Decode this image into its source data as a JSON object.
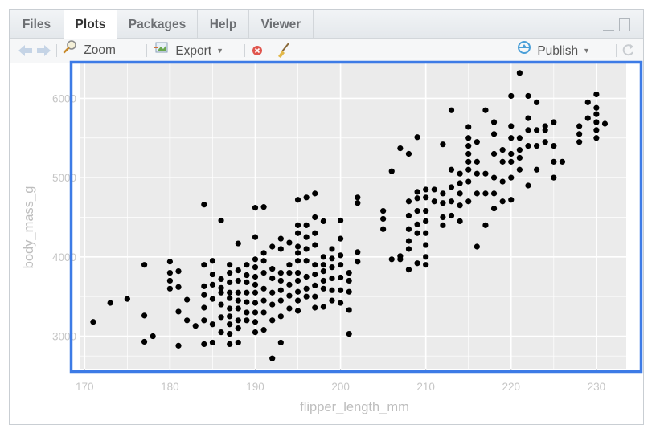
{
  "tabs": [
    {
      "label": "Files",
      "active": false
    },
    {
      "label": "Plots",
      "active": true
    },
    {
      "label": "Packages",
      "active": false
    },
    {
      "label": "Help",
      "active": false
    },
    {
      "label": "Viewer",
      "active": false
    }
  ],
  "toolbar": {
    "zoom_label": "Zoom",
    "export_label": "Export",
    "publish_label": "Publish",
    "icons": [
      "back-arrow-icon",
      "forward-arrow-icon",
      "magnifier-icon",
      "export-image-icon",
      "remove-plot-icon",
      "broom-icon",
      "publish-icon",
      "refresh-icon"
    ]
  },
  "colors": {
    "selection_outline": "#3d7be6",
    "panel_bg": "#ebebeb",
    "gridline": "#ffffff",
    "point": "#000000"
  },
  "chart_data": {
    "type": "scatter",
    "xlabel": "flipper_length_mm",
    "ylabel": "body_mass_g",
    "xticks": [
      170,
      180,
      190,
      200,
      210,
      220,
      230
    ],
    "yticks": [
      3000,
      4000,
      5000,
      6000
    ],
    "xlim": [
      169.5,
      233.5
    ],
    "ylim": [
      2590,
      6450
    ],
    "grid": true,
    "points": [
      [
        171,
        3180
      ],
      [
        173,
        3420
      ],
      [
        175,
        3470
      ],
      [
        177,
        2930
      ],
      [
        177,
        3260
      ],
      [
        177,
        3900
      ],
      [
        178,
        3000
      ],
      [
        180,
        3600
      ],
      [
        180,
        3700
      ],
      [
        180,
        3800
      ],
      [
        180,
        3940
      ],
      [
        181,
        2880
      ],
      [
        181,
        3310
      ],
      [
        181,
        3620
      ],
      [
        181,
        3820
      ],
      [
        182,
        3460
      ],
      [
        182,
        3200
      ],
      [
        183,
        3130
      ],
      [
        184,
        2900
      ],
      [
        184,
        3200
      ],
      [
        184,
        3360
      ],
      [
        184,
        3520
      ],
      [
        184,
        3630
      ],
      [
        184,
        3900
      ],
      [
        184,
        4660
      ],
      [
        185,
        2920
      ],
      [
        185,
        3150
      ],
      [
        185,
        3470
      ],
      [
        185,
        3650
      ],
      [
        185,
        3780
      ],
      [
        185,
        3950
      ],
      [
        186,
        3050
      ],
      [
        186,
        3240
      ],
      [
        186,
        3400
      ],
      [
        186,
        3550
      ],
      [
        186,
        3610
      ],
      [
        186,
        3720
      ],
      [
        186,
        4460
      ],
      [
        187,
        2900
      ],
      [
        187,
        3030
      ],
      [
        187,
        3150
      ],
      [
        187,
        3250
      ],
      [
        187,
        3350
      ],
      [
        187,
        3480
      ],
      [
        187,
        3550
      ],
      [
        187,
        3680
      ],
      [
        187,
        3800
      ],
      [
        187,
        3900
      ],
      [
        188,
        2920
      ],
      [
        188,
        3100
      ],
      [
        188,
        3200
      ],
      [
        188,
        3350
      ],
      [
        188,
        3450
      ],
      [
        188,
        3550
      ],
      [
        188,
        3700
      ],
      [
        188,
        3830
      ],
      [
        188,
        4170
      ],
      [
        189,
        3200
      ],
      [
        189,
        3300
      ],
      [
        189,
        3430
      ],
      [
        189,
        3550
      ],
      [
        189,
        3680
      ],
      [
        189,
        3770
      ],
      [
        189,
        3900
      ],
      [
        190,
        3050
      ],
      [
        190,
        3180
      ],
      [
        190,
        3300
      ],
      [
        190,
        3420
      ],
      [
        190,
        3550
      ],
      [
        190,
        3650
      ],
      [
        190,
        3750
      ],
      [
        190,
        3870
      ],
      [
        190,
        3970
      ],
      [
        190,
        4250
      ],
      [
        190,
        4620
      ],
      [
        191,
        3080
      ],
      [
        191,
        3300
      ],
      [
        191,
        3450
      ],
      [
        191,
        3600
      ],
      [
        191,
        3800
      ],
      [
        191,
        3950
      ],
      [
        191,
        4050
      ],
      [
        191,
        4630
      ],
      [
        192,
        2720
      ],
      [
        192,
        3200
      ],
      [
        192,
        3400
      ],
      [
        192,
        3550
      ],
      [
        192,
        3730
      ],
      [
        192,
        3850
      ],
      [
        192,
        4130
      ],
      [
        193,
        2920
      ],
      [
        193,
        3250
      ],
      [
        193,
        3450
      ],
      [
        193,
        3580
      ],
      [
        193,
        3700
      ],
      [
        193,
        3800
      ],
      [
        193,
        4100
      ],
      [
        193,
        4230
      ],
      [
        194,
        3350
      ],
      [
        194,
        3510
      ],
      [
        194,
        3650
      ],
      [
        194,
        3800
      ],
      [
        194,
        3900
      ],
      [
        194,
        4180
      ],
      [
        195,
        3320
      ],
      [
        195,
        3450
      ],
      [
        195,
        3560
      ],
      [
        195,
        3700
      ],
      [
        195,
        3800
      ],
      [
        195,
        3950
      ],
      [
        195,
        4050
      ],
      [
        195,
        4130
      ],
      [
        195,
        4300
      ],
      [
        195,
        4400
      ],
      [
        195,
        4720
      ],
      [
        196,
        3500
      ],
      [
        196,
        3600
      ],
      [
        196,
        3750
      ],
      [
        196,
        3950
      ],
      [
        196,
        4100
      ],
      [
        196,
        4250
      ],
      [
        196,
        4400
      ],
      [
        196,
        4750
      ],
      [
        197,
        3360
      ],
      [
        197,
        3500
      ],
      [
        197,
        3640
      ],
      [
        197,
        3780
      ],
      [
        197,
        3900
      ],
      [
        197,
        4150
      ],
      [
        197,
        4300
      ],
      [
        197,
        4500
      ],
      [
        197,
        4800
      ],
      [
        198,
        3370
      ],
      [
        198,
        3600
      ],
      [
        198,
        3700
      ],
      [
        198,
        3820
      ],
      [
        198,
        3900
      ],
      [
        198,
        4000
      ],
      [
        198,
        4450
      ],
      [
        199,
        3450
      ],
      [
        199,
        3580
      ],
      [
        199,
        3730
      ],
      [
        199,
        3870
      ],
      [
        199,
        3980
      ],
      [
        199,
        4100
      ],
      [
        200,
        3420
      ],
      [
        200,
        3580
      ],
      [
        200,
        3740
      ],
      [
        200,
        3900
      ],
      [
        200,
        4020
      ],
      [
        200,
        4230
      ],
      [
        200,
        4460
      ],
      [
        201,
        3030
      ],
      [
        201,
        3330
      ],
      [
        201,
        3560
      ],
      [
        201,
        3700
      ],
      [
        201,
        3800
      ],
      [
        202,
        3940
      ],
      [
        202,
        4060
      ],
      [
        202,
        4680
      ],
      [
        202,
        4750
      ],
      [
        205,
        4350
      ],
      [
        205,
        4480
      ],
      [
        205,
        4580
      ],
      [
        206,
        3970
      ],
      [
        206,
        5080
      ],
      [
        207,
        3970
      ],
      [
        207,
        4010
      ],
      [
        207,
        5370
      ],
      [
        208,
        3840
      ],
      [
        208,
        4100
      ],
      [
        208,
        4200
      ],
      [
        208,
        4350
      ],
      [
        208,
        4520
      ],
      [
        208,
        4700
      ],
      [
        208,
        5300
      ],
      [
        209,
        3920
      ],
      [
        209,
        4300
      ],
      [
        209,
        4410
      ],
      [
        209,
        4580
      ],
      [
        209,
        4740
      ],
      [
        209,
        4820
      ],
      [
        209,
        5510
      ],
      [
        210,
        3900
      ],
      [
        210,
        4000
      ],
      [
        210,
        4150
      ],
      [
        210,
        4300
      ],
      [
        210,
        4450
      ],
      [
        210,
        4580
      ],
      [
        210,
        4750
      ],
      [
        210,
        4850
      ],
      [
        211,
        4700
      ],
      [
        211,
        4850
      ],
      [
        212,
        4400
      ],
      [
        212,
        4500
      ],
      [
        212,
        4680
      ],
      [
        212,
        4800
      ],
      [
        212,
        5420
      ],
      [
        213,
        4520
      ],
      [
        213,
        4700
      ],
      [
        213,
        4880
      ],
      [
        213,
        5100
      ],
      [
        213,
        5850
      ],
      [
        214,
        4450
      ],
      [
        214,
        4650
      ],
      [
        214,
        4800
      ],
      [
        214,
        4930
      ],
      [
        214,
        5050
      ],
      [
        215,
        4700
      ],
      [
        215,
        4950
      ],
      [
        215,
        5100
      ],
      [
        215,
        5200
      ],
      [
        215,
        5300
      ],
      [
        215,
        5400
      ],
      [
        215,
        5500
      ],
      [
        215,
        5640
      ],
      [
        216,
        4130
      ],
      [
        216,
        4800
      ],
      [
        216,
        5050
      ],
      [
        216,
        5200
      ],
      [
        216,
        5450
      ],
      [
        217,
        4400
      ],
      [
        217,
        4800
      ],
      [
        217,
        5050
      ],
      [
        217,
        5850
      ],
      [
        218,
        4610
      ],
      [
        218,
        4800
      ],
      [
        218,
        5000
      ],
      [
        218,
        5300
      ],
      [
        218,
        5550
      ],
      [
        218,
        5700
      ],
      [
        219,
        4700
      ],
      [
        219,
        4950
      ],
      [
        219,
        5200
      ],
      [
        219,
        5350
      ],
      [
        220,
        4720
      ],
      [
        220,
        5000
      ],
      [
        220,
        5200
      ],
      [
        220,
        5300
      ],
      [
        220,
        5500
      ],
      [
        220,
        5650
      ],
      [
        220,
        6030
      ],
      [
        221,
        5100
      ],
      [
        221,
        5250
      ],
      [
        221,
        5350
      ],
      [
        221,
        5500
      ],
      [
        221,
        6320
      ],
      [
        222,
        4900
      ],
      [
        222,
        5400
      ],
      [
        222,
        5600
      ],
      [
        222,
        5750
      ],
      [
        222,
        6030
      ],
      [
        223,
        5100
      ],
      [
        223,
        5400
      ],
      [
        223,
        5600
      ],
      [
        223,
        5950
      ],
      [
        224,
        5450
      ],
      [
        224,
        5600
      ],
      [
        224,
        5650
      ],
      [
        225,
        5000
      ],
      [
        225,
        5200
      ],
      [
        225,
        5400
      ],
      [
        225,
        5700
      ],
      [
        226,
        5200
      ],
      [
        228,
        5450
      ],
      [
        228,
        5550
      ],
      [
        228,
        5650
      ],
      [
        229,
        5750
      ],
      [
        229,
        5950
      ],
      [
        230,
        5500
      ],
      [
        230,
        5600
      ],
      [
        230,
        5700
      ],
      [
        230,
        5800
      ],
      [
        230,
        5880
      ],
      [
        230,
        6050
      ],
      [
        231,
        5680
      ]
    ]
  }
}
